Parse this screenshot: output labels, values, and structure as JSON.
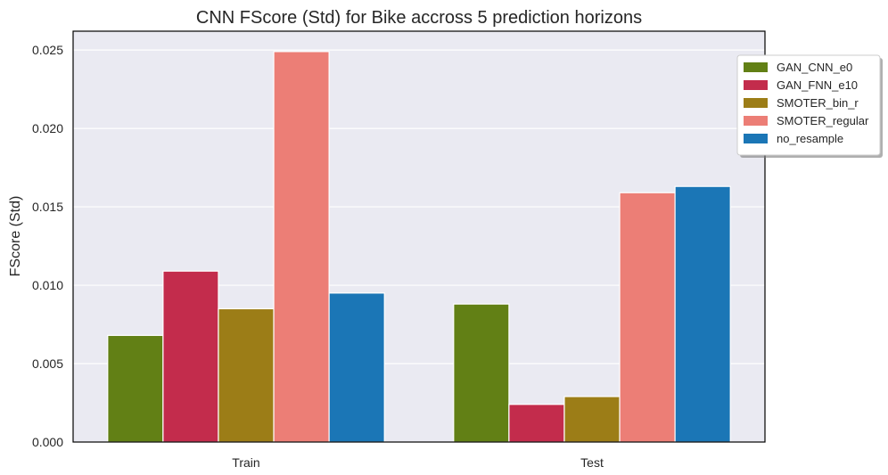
{
  "chart_data": {
    "type": "bar",
    "title": "CNN FScore (Std) for Bike accross 5 prediction horizons",
    "xlabel": "",
    "ylabel": "FScore (Std)",
    "ylim": [
      0,
      0.0262
    ],
    "yticks": [
      "0.000",
      "0.005",
      "0.010",
      "0.015",
      "0.020",
      "0.025"
    ],
    "grid": true,
    "legend_position": "top-right, outside",
    "categories": [
      "Train",
      "Test"
    ],
    "series": [
      {
        "name": "GAN_CNN_e0",
        "color": "#628015",
        "values": [
          0.0068,
          0.0088
        ]
      },
      {
        "name": "GAN_FNN_e10",
        "color": "#c32c4c",
        "values": [
          0.0109,
          0.0024
        ]
      },
      {
        "name": "SMOTER_bin_r",
        "color": "#9c7d17",
        "values": [
          0.0085,
          0.0029
        ]
      },
      {
        "name": "SMOTER_regular",
        "color": "#ec7e76",
        "values": [
          0.0249,
          0.0159
        ]
      },
      {
        "name": "no_resample",
        "color": "#1b76b6",
        "values": [
          0.0095,
          0.0163
        ]
      }
    ]
  }
}
